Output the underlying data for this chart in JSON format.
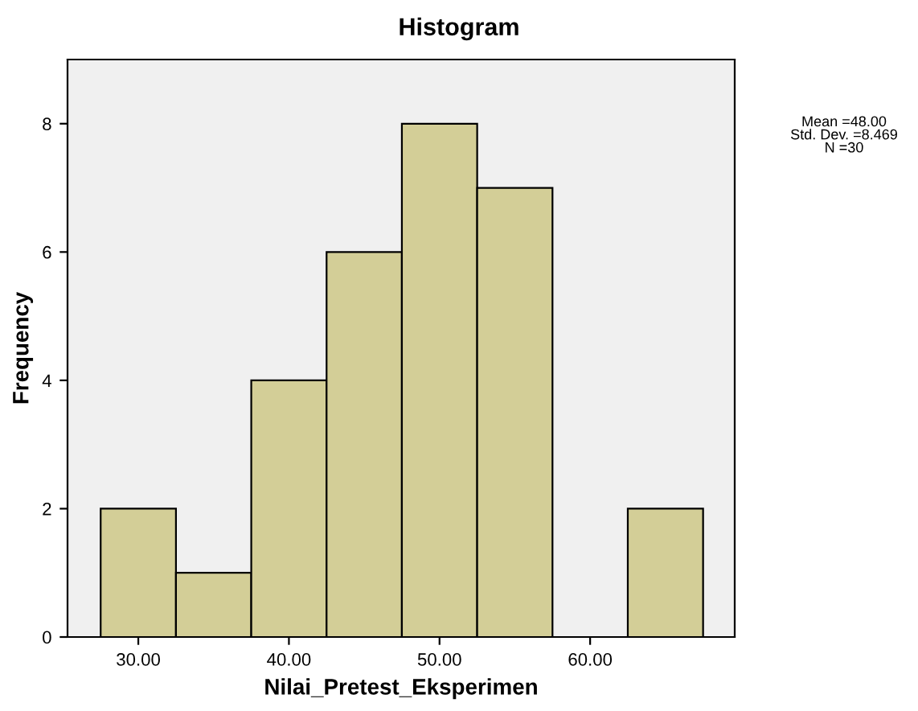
{
  "chart_data": {
    "type": "histogram",
    "title": "Histogram",
    "xlabel": "Nilai_Pretest_Eksperimen",
    "ylabel": "Frequency",
    "bins": [
      27.5,
      32.5,
      37.5,
      42.5,
      47.5,
      52.5,
      57.5,
      62.5,
      67.5
    ],
    "values": [
      2,
      1,
      4,
      6,
      8,
      7,
      0,
      2
    ],
    "color": "#d3ce97",
    "xlim": [
      25.3,
      69.6
    ],
    "xticks": [
      {
        "value": 30,
        "label": "30.00"
      },
      {
        "value": 40,
        "label": "40.00"
      },
      {
        "value": 50,
        "label": "50.00"
      },
      {
        "value": 60,
        "label": "60.00"
      }
    ],
    "ylim": [
      0,
      9
    ],
    "yticks": [
      0,
      2,
      4,
      6,
      8
    ],
    "annotations": [
      "Mean =48.00\nStd. Dev. =8.469\nN =30"
    ],
    "grid": false
  }
}
